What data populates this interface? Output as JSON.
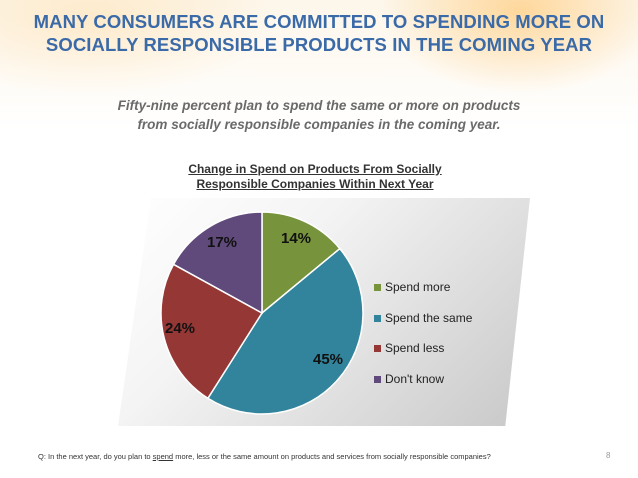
{
  "slide": {
    "title_line1": "MANY CONSUMERS ARE COMMITTED TO SPENDING MORE ON",
    "title_line2": "SOCIALLY RESPONSIBLE PRODUCTS IN THE COMING YEAR",
    "subtitle_line1": "Fifty-nine percent plan to spend the same or more on products",
    "subtitle_line2": "from socially responsible companies in the coming year.",
    "footnote_pre": "Q: In the next year, do you plan to ",
    "footnote_underlined": "spend",
    "footnote_post": " more, less or the same amount on products and services from socially responsible companies?",
    "page_number": "8"
  },
  "chart_data": {
    "type": "pie",
    "title_line1": "Change in Spend on Products From Socially",
    "title_line2": "Responsible Companies Within Next Year",
    "categories": [
      "Spend more",
      "Spend the same",
      "Spend less",
      "Don't know"
    ],
    "values": [
      14,
      45,
      24,
      17
    ],
    "labels": [
      "14%",
      "45%",
      "24%",
      "17%"
    ],
    "colors": [
      "#77933c",
      "#31849b",
      "#953735",
      "#604a7b"
    ],
    "legend_position": "right"
  }
}
